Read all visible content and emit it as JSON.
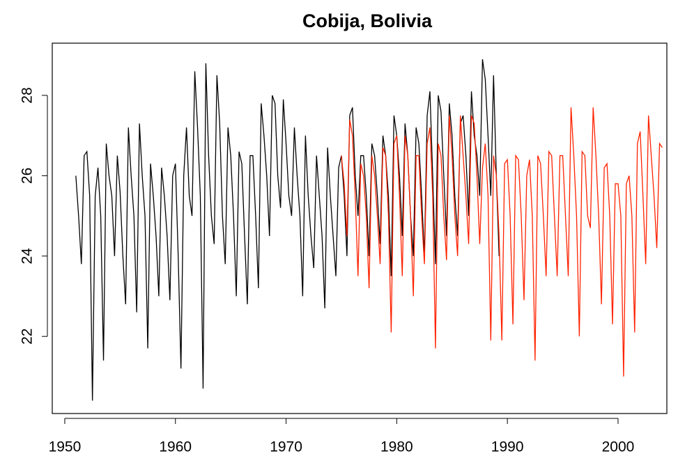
{
  "chart_data": {
    "type": "line",
    "title": "Cobija, Bolivia",
    "xlim": [
      1948.87,
      2004.41
    ],
    "ylim": [
      20.08,
      29.3
    ],
    "xticks": [
      1950,
      1960,
      1970,
      1980,
      1990,
      2000
    ],
    "yticks": [
      22,
      24,
      26,
      28
    ],
    "series": [
      {
        "color": "#000000",
        "x": [
          1951,
          1951.25,
          1951.5,
          1951.75,
          1952,
          1952.25,
          1952.5,
          1952.75,
          1953,
          1953.25,
          1953.5,
          1953.75,
          1954,
          1954.25,
          1954.5,
          1954.75,
          1955,
          1955.25,
          1955.5,
          1955.75,
          1956,
          1956.25,
          1956.5,
          1956.75,
          1957,
          1957.25,
          1957.5,
          1957.75,
          1958,
          1958.25,
          1958.5,
          1958.75,
          1959,
          1959.25,
          1959.5,
          1959.75,
          1960,
          1960.25,
          1960.5,
          1960.75,
          1961,
          1961.25,
          1961.5,
          1961.75,
          1962,
          1962.25,
          1962.5,
          1962.75,
          1963,
          1963.25,
          1963.5,
          1963.75,
          1964,
          1964.25,
          1964.5,
          1964.75,
          1965,
          1965.25,
          1965.5,
          1965.75,
          1966,
          1966.25,
          1966.5,
          1966.75,
          1967,
          1967.25,
          1967.5,
          1967.75,
          1968,
          1968.25,
          1968.5,
          1968.75,
          1969,
          1969.25,
          1969.5,
          1969.75,
          1970,
          1970.25,
          1970.5,
          1970.75,
          1971,
          1971.25,
          1971.5,
          1971.75,
          1972,
          1972.25,
          1972.5,
          1972.75,
          1973,
          1973.25,
          1973.5,
          1973.75,
          1974,
          1974.25,
          1974.5,
          1974.75,
          1975,
          1975.25,
          1975.5,
          1975.75,
          1976,
          1976.25,
          1976.5,
          1976.75,
          1977,
          1977.25,
          1977.5,
          1977.75,
          1978,
          1978.25,
          1978.5,
          1978.75,
          1979,
          1979.25,
          1979.5,
          1979.75,
          1980,
          1980.25,
          1980.5,
          1980.75,
          1981,
          1981.25,
          1981.5,
          1981.75,
          1982,
          1982.25,
          1982.5,
          1982.75,
          1983,
          1983.25,
          1983.5,
          1983.75,
          1984,
          1984.25,
          1984.5,
          1984.75,
          1985,
          1985.25,
          1985.5,
          1985.75,
          1986,
          1986.25,
          1986.5,
          1986.75,
          1987,
          1987.25,
          1987.5,
          1987.75,
          1988,
          1988.25,
          1988.5,
          1988.75,
          1989,
          1989.25
        ],
        "values": [
          26,
          25,
          23.8,
          26.5,
          26.6,
          25.5,
          20.4,
          25.5,
          26.2,
          25,
          21.4,
          26.8,
          26,
          25.5,
          24,
          26.5,
          25.6,
          24,
          22.8,
          27.2,
          26,
          25,
          22.6,
          27.3,
          26,
          25,
          21.7,
          26.3,
          25.5,
          24.5,
          23,
          26.2,
          25.5,
          24.5,
          22.9,
          26,
          26.3,
          24,
          21.2,
          26,
          27.2,
          25.5,
          25,
          28.6,
          27.2,
          25.5,
          20.7,
          28.8,
          26.5,
          25,
          24.3,
          28.5,
          27.3,
          25,
          23.8,
          27.2,
          26.5,
          25,
          23,
          26.6,
          26.3,
          24.5,
          22.8,
          26.5,
          26.5,
          25,
          23.2,
          27.8,
          27,
          26,
          24.5,
          28,
          27.8,
          26,
          25.2,
          27.9,
          26.8,
          25.5,
          25,
          27.2,
          26,
          25,
          23,
          27,
          25.5,
          24.5,
          23.7,
          26.5,
          25.5,
          24.5,
          22.7,
          26.7,
          25.5,
          24.5,
          23.5,
          26.2,
          26.5,
          25.5,
          24,
          27.5,
          27.7,
          26,
          25,
          26.5,
          26.5,
          25.5,
          24,
          26.8,
          26.5,
          25.5,
          24.3,
          27,
          26.5,
          25.5,
          23.5,
          27.5,
          27,
          26,
          24.5,
          27.3,
          26.5,
          25,
          24,
          27.2,
          26.8,
          25.5,
          24,
          27.5,
          28.1,
          26,
          23.8,
          28,
          27.6,
          26,
          24.5,
          27.8,
          27,
          25.5,
          24.5,
          27.3,
          27.5,
          26.5,
          25,
          28.1,
          27,
          26.5,
          25.5,
          28.9,
          28.4,
          27,
          25.5,
          28.5,
          26,
          24
        ]
      },
      {
        "color": "#ff2200",
        "x": [
          1975,
          1975.25,
          1975.5,
          1975.75,
          1976,
          1976.25,
          1976.5,
          1976.75,
          1977,
          1977.25,
          1977.5,
          1977.75,
          1978,
          1978.25,
          1978.5,
          1978.75,
          1979,
          1979.25,
          1979.5,
          1979.75,
          1980,
          1980.25,
          1980.5,
          1980.75,
          1981,
          1981.25,
          1981.5,
          1981.75,
          1982,
          1982.25,
          1982.5,
          1982.75,
          1983,
          1983.25,
          1983.5,
          1983.75,
          1984,
          1984.25,
          1984.5,
          1984.75,
          1985,
          1985.25,
          1985.5,
          1985.75,
          1986,
          1986.25,
          1986.5,
          1986.75,
          1987,
          1987.25,
          1987.5,
          1987.75,
          1988,
          1988.25,
          1988.5,
          1988.75,
          1989,
          1989.25,
          1989.5,
          1989.75,
          1990,
          1990.25,
          1990.5,
          1990.75,
          1991,
          1991.25,
          1991.5,
          1991.75,
          1992,
          1992.25,
          1992.5,
          1992.75,
          1993,
          1993.25,
          1993.5,
          1993.75,
          1994,
          1994.25,
          1994.5,
          1994.75,
          1995,
          1995.25,
          1995.5,
          1995.75,
          1996,
          1996.25,
          1996.5,
          1996.75,
          1997,
          1997.25,
          1997.5,
          1997.75,
          1998,
          1998.25,
          1998.5,
          1998.75,
          1999,
          1999.25,
          1999.5,
          1999.75,
          2000,
          2000.25,
          2000.5,
          2000.75,
          2001,
          2001.25,
          2001.5,
          2001.75,
          2002,
          2002.25,
          2002.5,
          2002.75,
          2003,
          2003.25,
          2003.5,
          2003.75,
          2004
        ],
        "values": [
          26.5,
          25.8,
          24.5,
          27.4,
          27,
          25.5,
          23.5,
          26.3,
          26,
          25,
          23.2,
          26.5,
          26,
          25,
          23.8,
          26.7,
          26.5,
          25,
          22.1,
          26.8,
          27,
          25.5,
          23.5,
          27,
          26.5,
          25,
          23,
          26.5,
          26.5,
          25,
          23.8,
          26.8,
          27.2,
          25.5,
          21.7,
          26.8,
          26.5,
          25,
          23.9,
          27.5,
          26.5,
          25,
          24,
          27.5,
          26.5,
          25.5,
          24.3,
          27.5,
          27.3,
          26,
          24.3,
          26.2,
          26.8,
          25.5,
          21.9,
          26.5,
          26,
          24.5,
          21.9,
          26.3,
          26.4,
          25,
          22.3,
          26.5,
          26.4,
          25,
          22.9,
          26,
          26.4,
          25,
          21.4,
          26.5,
          26.3,
          25,
          23.5,
          26.6,
          26.5,
          25,
          23.5,
          26.5,
          26.5,
          25,
          23.5,
          27.7,
          26.5,
          25,
          22,
          26.6,
          26.5,
          25,
          24.7,
          27.7,
          26.5,
          25,
          22.8,
          26.2,
          26.3,
          25,
          22.3,
          25.8,
          25.8,
          25,
          21,
          25.8,
          26,
          25,
          22.1,
          26.8,
          27.1,
          25.5,
          23.8,
          27.5,
          26.5,
          25.5,
          24.2,
          26.8,
          26.7
        ]
      }
    ]
  }
}
